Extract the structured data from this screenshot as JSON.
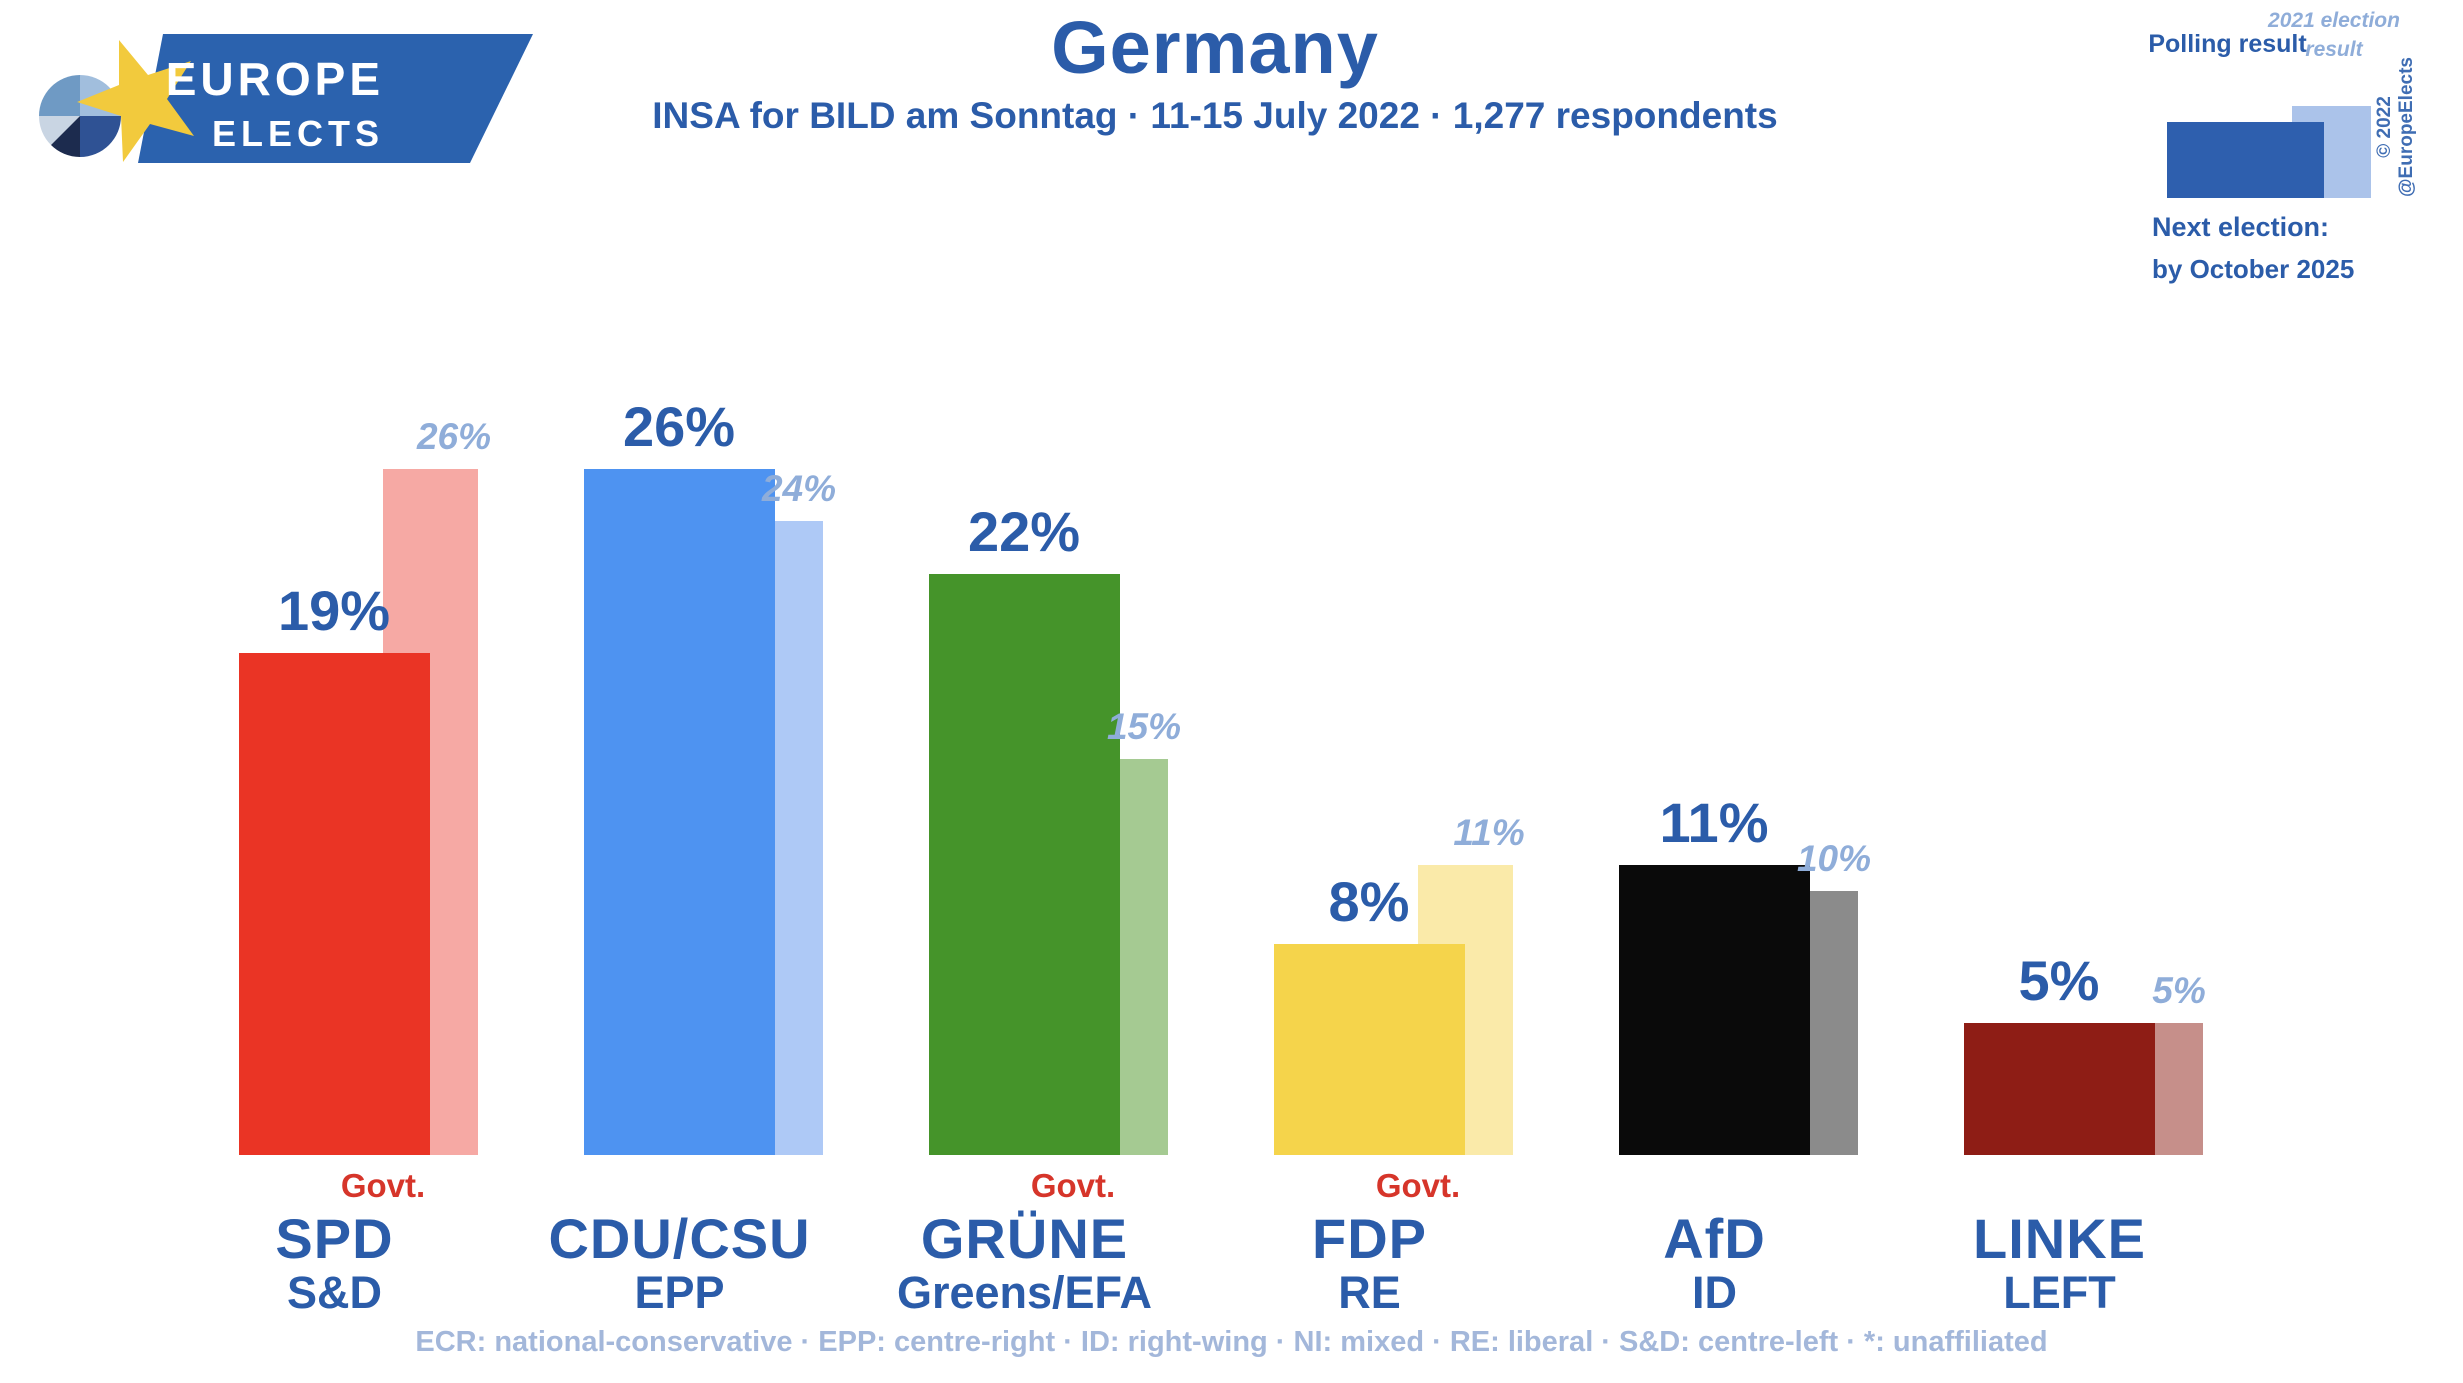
{
  "logo": {
    "line1": "EUROPE",
    "line2": "ELECTS"
  },
  "header": {
    "title": "Germany",
    "subtitle": "INSA for BILD am Sonntag · 11-15 July 2022 · 1,277 respondents"
  },
  "legend": {
    "polling_label": "Polling result",
    "election_label": "2021 election result",
    "next_election_label": "Next election:",
    "next_election_value": "by October 2025",
    "copyright": "© 2022 @EuropeElects"
  },
  "colors": {
    "accent_blue": "#2b5ca9",
    "election_text": "#8fadd9",
    "footer_text": "#a3b7da",
    "govt_red": "#d6352a",
    "copyright_blue": "#3f6db3",
    "legend_polling": "#2e5fae",
    "legend_election": "#abc3ea",
    "logo_banner": "#2b62ae",
    "logo_star": "#f2ca3d"
  },
  "chart_data": {
    "type": "bar",
    "title": "Germany",
    "subtitle": "INSA for BILD am Sonntag · 11-15 July 2022 · 1,277 respondents",
    "unit": "%",
    "ylim": [
      0,
      28
    ],
    "grid": false,
    "legend_position": "top-right",
    "categories": [
      "SPD",
      "CDU/CSU",
      "GRÜNE",
      "FDP",
      "AfD",
      "LINKE"
    ],
    "series": [
      {
        "name": "Polling result",
        "values": [
          19,
          26,
          22,
          8,
          11,
          5
        ]
      },
      {
        "name": "2021 election result",
        "values": [
          26,
          24,
          15,
          11,
          10,
          5
        ]
      }
    ],
    "govt_label": "Govt.",
    "parties": [
      {
        "key": "spd",
        "party": "SPD",
        "eu_group": "S&D",
        "polling": 19,
        "election": 26,
        "polling_label": "19%",
        "election_label": "26%",
        "govt": true,
        "polling_color": "#ea3425",
        "election_color": "#f6a9a4"
      },
      {
        "key": "cducsu",
        "party": "CDU/CSU",
        "eu_group": "EPP",
        "polling": 26,
        "election": 24,
        "polling_label": "26%",
        "election_label": "24%",
        "govt": false,
        "polling_color": "#4e93f1",
        "election_color": "#aec9f6"
      },
      {
        "key": "grune",
        "party": "GRÜNE",
        "eu_group": "Greens/EFA",
        "polling": 22,
        "election": 15,
        "polling_label": "22%",
        "election_label": "15%",
        "govt": true,
        "polling_color": "#45942a",
        "election_color": "#a5ca92"
      },
      {
        "key": "fdp",
        "party": "FDP",
        "eu_group": "RE",
        "polling": 8,
        "election": 11,
        "polling_label": "8%",
        "election_label": "11%",
        "govt": true,
        "polling_color": "#f5d44b",
        "election_color": "#faeaa9"
      },
      {
        "key": "afd",
        "party": "AfD",
        "eu_group": "ID",
        "polling": 11,
        "election": 10,
        "polling_label": "11%",
        "election_label": "10%",
        "govt": false,
        "polling_color": "#0a0a0a",
        "election_color": "#8b8b8b"
      },
      {
        "key": "linke",
        "party": "LINKE",
        "eu_group": "LEFT",
        "polling": 5,
        "election": 5,
        "polling_label": "5%",
        "election_label": "5%",
        "govt": false,
        "polling_color": "#8e1d15",
        "election_color": "#c68f8a"
      }
    ]
  },
  "footer": {
    "text": "ECR: national-conservative · EPP: centre-right · ID: right-wing · NI: mixed · RE: liberal · S&D: centre-left · *: unaffiliated"
  }
}
